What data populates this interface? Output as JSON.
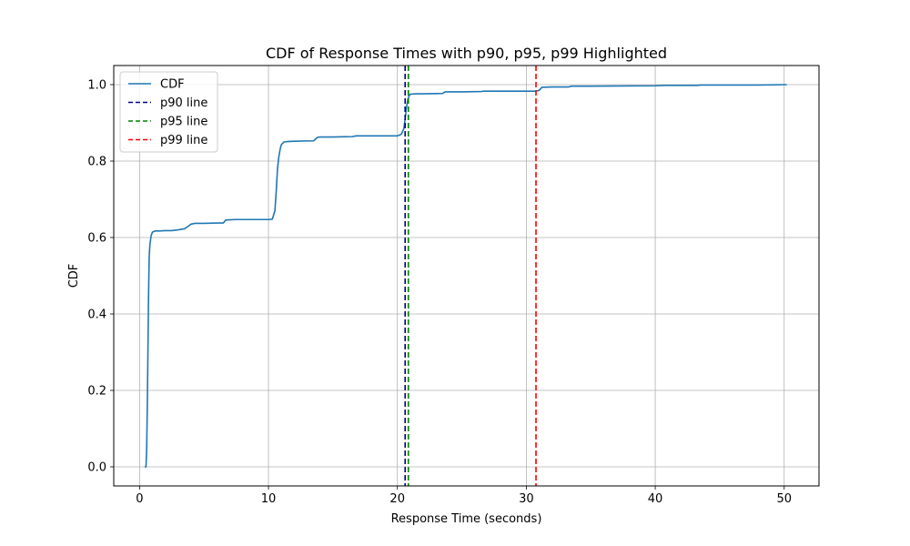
{
  "chart_data": {
    "type": "line",
    "title": "CDF of Response Times with p90, p95, p99 Highlighted",
    "xlabel": "Response Time (seconds)",
    "ylabel": "CDF",
    "xlim": [
      -2,
      52.7
    ],
    "ylim": [
      -0.05,
      1.05
    ],
    "xticks": [
      0,
      10,
      20,
      30,
      40,
      50
    ],
    "xtick_labels": [
      "0",
      "10",
      "20",
      "30",
      "40",
      "50"
    ],
    "yticks": [
      0.0,
      0.2,
      0.4,
      0.6,
      0.8,
      1.0
    ],
    "ytick_labels": [
      "0.0",
      "0.2",
      "0.4",
      "0.6",
      "0.8",
      "1.0"
    ],
    "grid": true,
    "legend_position": "top-left",
    "series": [
      {
        "name": "CDF",
        "color": "#1f77b4",
        "style": "solid",
        "x": [
          0.4,
          0.5,
          0.55,
          0.6,
          0.65,
          0.7,
          0.75,
          0.8,
          0.9,
          1.0,
          1.2,
          1.5,
          2.0,
          2.5,
          3.0,
          3.5,
          3.8,
          4.0,
          4.3,
          5.0,
          6.0,
          6.5,
          6.7,
          7.5,
          9.0,
          10.0,
          10.3,
          10.5,
          10.6,
          10.7,
          10.8,
          10.9,
          11.0,
          11.2,
          11.5,
          12.0,
          13.5,
          13.8,
          14.0,
          15.0,
          16.5,
          16.8,
          18.0,
          20.0,
          20.3,
          20.5,
          20.6,
          20.7,
          20.8,
          20.9,
          21.0,
          21.5,
          22.0,
          23.5,
          23.7,
          25.0,
          26.5,
          26.7,
          28.0,
          30.7,
          31.0,
          31.2,
          32.0,
          33.3,
          33.5,
          35.0,
          40.0,
          40.7,
          43.3,
          43.5,
          45.0,
          48.0,
          50.2
        ],
        "y": [
          0.0,
          0.0,
          0.04,
          0.15,
          0.3,
          0.45,
          0.55,
          0.58,
          0.605,
          0.614,
          0.617,
          0.617,
          0.618,
          0.618,
          0.62,
          0.623,
          0.63,
          0.635,
          0.637,
          0.637,
          0.638,
          0.638,
          0.646,
          0.647,
          0.647,
          0.647,
          0.648,
          0.67,
          0.72,
          0.78,
          0.81,
          0.83,
          0.843,
          0.85,
          0.851,
          0.852,
          0.853,
          0.862,
          0.863,
          0.863,
          0.864,
          0.866,
          0.866,
          0.866,
          0.87,
          0.885,
          0.91,
          0.94,
          0.96,
          0.97,
          0.975,
          0.976,
          0.976,
          0.977,
          0.981,
          0.981,
          0.982,
          0.983,
          0.983,
          0.983,
          0.985,
          0.993,
          0.994,
          0.994,
          0.996,
          0.996,
          0.997,
          0.998,
          0.998,
          0.999,
          0.999,
          0.999,
          1.0
        ]
      },
      {
        "name": "p90 line",
        "color": "#00008b",
        "style": "dashed",
        "x_value": 20.6
      },
      {
        "name": "p95 line",
        "color": "#008000",
        "style": "dashed",
        "x_value": 20.85
      },
      {
        "name": "p99 line",
        "color": "#ff0000",
        "style": "dashed",
        "x_value": 30.75
      }
    ]
  }
}
